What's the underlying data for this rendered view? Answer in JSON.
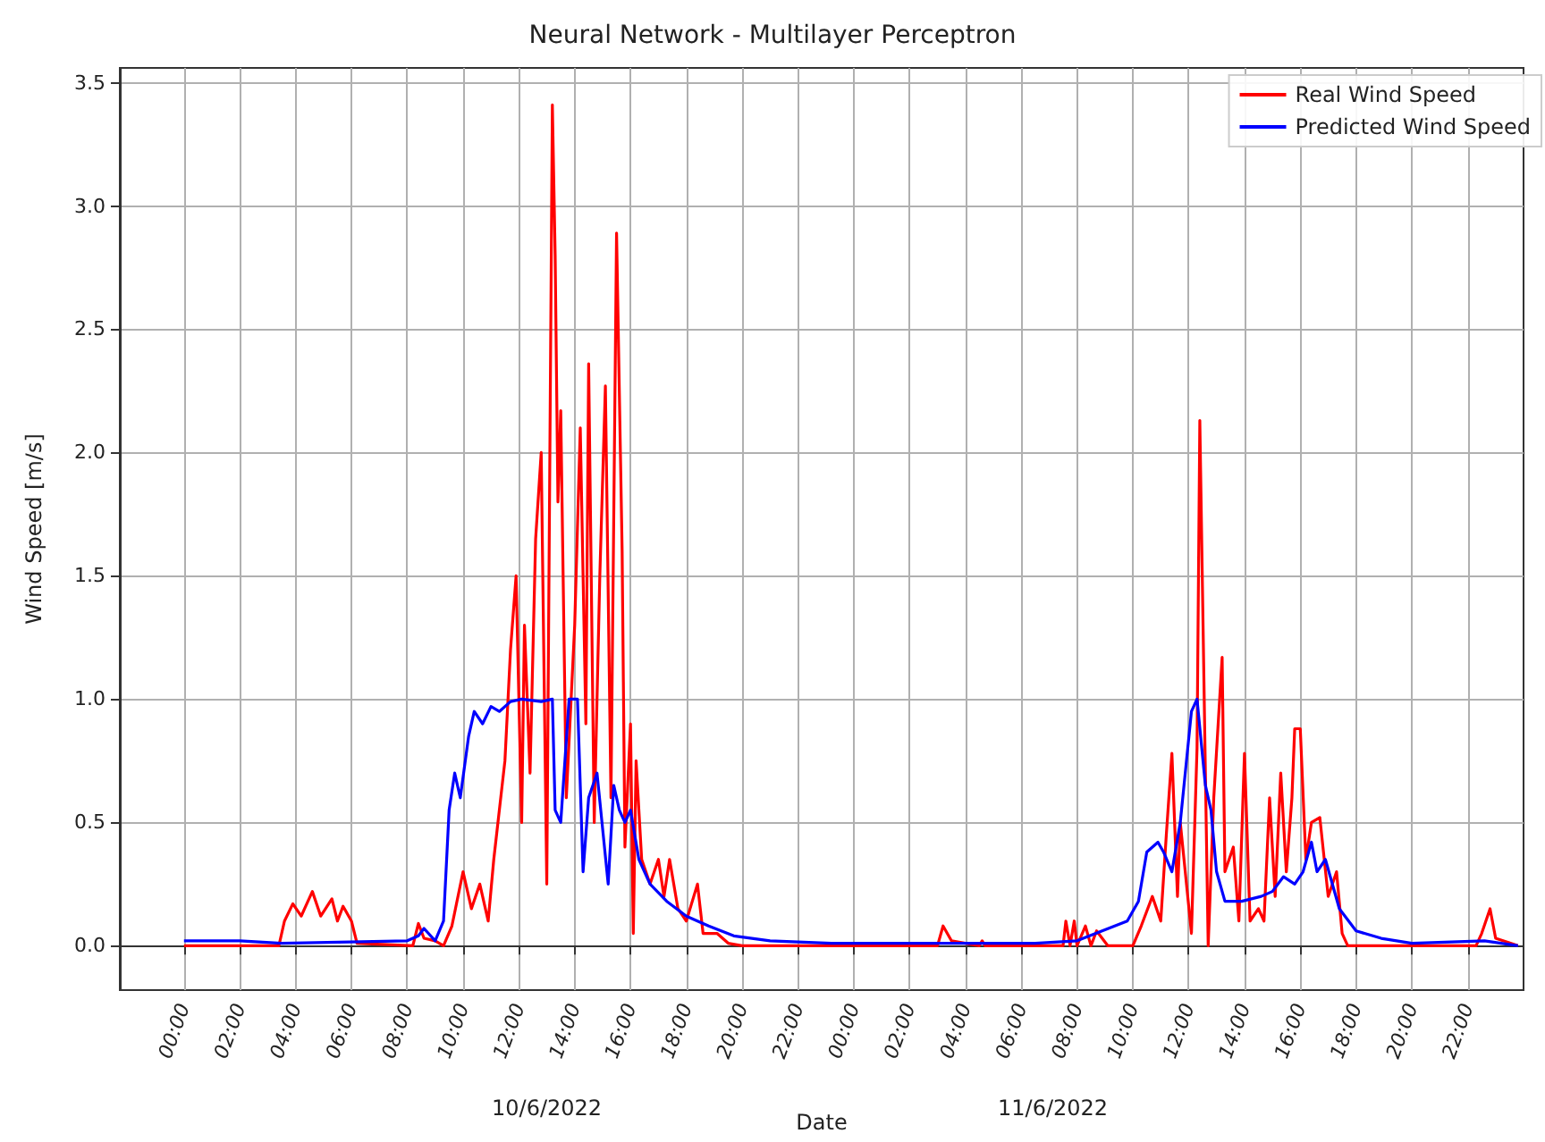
{
  "chart_data": {
    "type": "line",
    "title": "Neural Network - Multilayer Perceptron",
    "xlabel": "Date",
    "ylabel": "Wind Speed [m/s]",
    "xlim": [
      "2022-06-09T21:42",
      "2022-06-12T00:00"
    ],
    "ylim": [
      -0.18,
      3.56
    ],
    "xticks": [
      {
        "value": "2022-06-10T00:00",
        "label": "00:00"
      },
      {
        "value": "2022-06-10T02:00",
        "label": "02:00"
      },
      {
        "value": "2022-06-10T04:00",
        "label": "04:00"
      },
      {
        "value": "2022-06-10T06:00",
        "label": "06:00"
      },
      {
        "value": "2022-06-10T08:00",
        "label": "08:00"
      },
      {
        "value": "2022-06-10T10:00",
        "label": "10:00"
      },
      {
        "value": "2022-06-10T12:00",
        "label": "12:00"
      },
      {
        "value": "2022-06-10T14:00",
        "label": "14:00"
      },
      {
        "value": "2022-06-10T16:00",
        "label": "16:00"
      },
      {
        "value": "2022-06-10T18:00",
        "label": "18:00"
      },
      {
        "value": "2022-06-10T20:00",
        "label": "20:00"
      },
      {
        "value": "2022-06-10T22:00",
        "label": "22:00"
      },
      {
        "value": "2022-06-11T00:00",
        "label": "00:00"
      },
      {
        "value": "2022-06-11T02:00",
        "label": "02:00"
      },
      {
        "value": "2022-06-11T04:00",
        "label": "04:00"
      },
      {
        "value": "2022-06-11T06:00",
        "label": "06:00"
      },
      {
        "value": "2022-06-11T08:00",
        "label": "08:00"
      },
      {
        "value": "2022-06-11T10:00",
        "label": "10:00"
      },
      {
        "value": "2022-06-11T12:00",
        "label": "12:00"
      },
      {
        "value": "2022-06-11T14:00",
        "label": "14:00"
      },
      {
        "value": "2022-06-11T16:00",
        "label": "16:00"
      },
      {
        "value": "2022-06-11T18:00",
        "label": "18:00"
      },
      {
        "value": "2022-06-11T20:00",
        "label": "20:00"
      },
      {
        "value": "2022-06-11T22:00",
        "label": "22:00"
      }
    ],
    "yticks": [
      {
        "value": 0,
        "label": "0.0"
      },
      {
        "value": 0.5,
        "label": "0.5"
      },
      {
        "value": 1,
        "label": "1.0"
      },
      {
        "value": 1.5,
        "label": "1.5"
      },
      {
        "value": 2,
        "label": "2.0"
      },
      {
        "value": 2.5,
        "label": "2.5"
      },
      {
        "value": 3,
        "label": "3.0"
      },
      {
        "value": 3.5,
        "label": "3.5"
      }
    ],
    "grid": true,
    "legend": "top right",
    "marker": "none",
    "line_style": "solid",
    "annotations": [
      "10/6/2022",
      "11/6/2022"
    ],
    "series": [
      {
        "name": "Real Wind Speed",
        "color": "#ff0000",
        "x": [
          "2022-06-10T00:00",
          "2022-06-10T03:24",
          "2022-06-10T03:36",
          "2022-06-10T03:54",
          "2022-06-10T04:12",
          "2022-06-10T04:36",
          "2022-06-10T04:54",
          "2022-06-10T05:18",
          "2022-06-10T05:30",
          "2022-06-10T05:42",
          "2022-06-10T06:00",
          "2022-06-10T06:12",
          "2022-06-10T08:12",
          "2022-06-10T08:24",
          "2022-06-10T08:36",
          "2022-06-10T09:00",
          "2022-06-10T09:18",
          "2022-06-10T09:36",
          "2022-06-10T10:00",
          "2022-06-10T10:18",
          "2022-06-10T10:36",
          "2022-06-10T10:54",
          "2022-06-10T11:06",
          "2022-06-10T11:30",
          "2022-06-10T11:42",
          "2022-06-10T11:54",
          "2022-06-10T12:06",
          "2022-06-10T12:12",
          "2022-06-10T12:24",
          "2022-06-10T12:36",
          "2022-06-10T12:48",
          "2022-06-10T13:00",
          "2022-06-10T13:12",
          "2022-06-10T13:18",
          "2022-06-10T13:24",
          "2022-06-10T13:30",
          "2022-06-10T13:42",
          "2022-06-10T14:00",
          "2022-06-10T14:12",
          "2022-06-10T14:24",
          "2022-06-10T14:30",
          "2022-06-10T14:42",
          "2022-06-10T14:54",
          "2022-06-10T15:06",
          "2022-06-10T15:18",
          "2022-06-10T15:30",
          "2022-06-10T15:42",
          "2022-06-10T15:48",
          "2022-06-10T16:00",
          "2022-06-10T16:06",
          "2022-06-10T16:12",
          "2022-06-10T16:24",
          "2022-06-10T16:42",
          "2022-06-10T17:00",
          "2022-06-10T17:12",
          "2022-06-10T17:24",
          "2022-06-10T17:42",
          "2022-06-10T18:00",
          "2022-06-10T18:24",
          "2022-06-10T18:36",
          "2022-06-10T19:06",
          "2022-06-10T19:30",
          "2022-06-10T20:00",
          "2022-06-11T03:00",
          "2022-06-11T03:12",
          "2022-06-11T03:30",
          "2022-06-11T04:30",
          "2022-06-11T04:36",
          "2022-06-11T04:42",
          "2022-06-11T07:30",
          "2022-06-11T07:36",
          "2022-06-11T07:45",
          "2022-06-11T07:54",
          "2022-06-11T08:00",
          "2022-06-11T08:18",
          "2022-06-11T08:30",
          "2022-06-11T08:42",
          "2022-06-11T09:06",
          "2022-06-11T10:00",
          "2022-06-11T10:18",
          "2022-06-11T10:42",
          "2022-06-11T11:00",
          "2022-06-11T11:12",
          "2022-06-11T11:24",
          "2022-06-11T11:36",
          "2022-06-11T11:42",
          "2022-06-11T12:06",
          "2022-06-11T12:18",
          "2022-06-11T12:24",
          "2022-06-11T12:36",
          "2022-06-11T12:42",
          "2022-06-11T12:54",
          "2022-06-11T13:12",
          "2022-06-11T13:18",
          "2022-06-11T13:36",
          "2022-06-11T13:48",
          "2022-06-11T14:00",
          "2022-06-11T14:12",
          "2022-06-11T14:30",
          "2022-06-11T14:42",
          "2022-06-11T14:54",
          "2022-06-11T15:06",
          "2022-06-11T15:18",
          "2022-06-11T15:30",
          "2022-06-11T15:42",
          "2022-06-11T15:48",
          "2022-06-11T16:00",
          "2022-06-11T16:12",
          "2022-06-11T16:24",
          "2022-06-11T16:42",
          "2022-06-11T17:00",
          "2022-06-11T17:18",
          "2022-06-11T17:30",
          "2022-06-11T17:42",
          "2022-06-11T22:18",
          "2022-06-11T22:30",
          "2022-06-11T22:48",
          "2022-06-11T23:00",
          "2022-06-11T23:48"
        ],
        "values": [
          0,
          0,
          0.1,
          0.17,
          0.12,
          0.22,
          0.12,
          0.19,
          0.1,
          0.16,
          0.1,
          0.01,
          0,
          0.09,
          0.03,
          0.02,
          0,
          0.08,
          0.3,
          0.15,
          0.25,
          0.1,
          0.35,
          0.75,
          1.2,
          1.5,
          0.5,
          1.3,
          0.7,
          1.65,
          2.0,
          0.25,
          3.41,
          2.8,
          1.8,
          2.17,
          0.6,
          1.3,
          2.1,
          0.9,
          2.36,
          0.5,
          1.5,
          2.27,
          0.6,
          2.89,
          1.6,
          0.4,
          0.9,
          0.05,
          0.75,
          0.35,
          0.25,
          0.35,
          0.2,
          0.35,
          0.15,
          0.1,
          0.25,
          0.05,
          0.05,
          0.01,
          0,
          0,
          0.08,
          0.02,
          0,
          0.02,
          0,
          0,
          0.1,
          0,
          0.1,
          0,
          0.08,
          0,
          0.06,
          0,
          0,
          0.08,
          0.2,
          0.1,
          0.45,
          0.78,
          0.2,
          0.5,
          0.05,
          0.8,
          2.13,
          0.7,
          0,
          0.6,
          1.17,
          0.3,
          0.4,
          0.1,
          0.78,
          0.1,
          0.15,
          0.1,
          0.6,
          0.2,
          0.7,
          0.3,
          0.6,
          0.88,
          0.88,
          0.35,
          0.5,
          0.52,
          0.2,
          0.3,
          0.05,
          0,
          0,
          0.05,
          0.15,
          0.03,
          0
        ]
      },
      {
        "name": "Predicted Wind Speed",
        "color": "#0000ff",
        "x": [
          "2022-06-10T00:00",
          "2022-06-10T02:00",
          "2022-06-10T03:30",
          "2022-06-10T08:00",
          "2022-06-10T08:24",
          "2022-06-10T08:36",
          "2022-06-10T09:00",
          "2022-06-10T09:18",
          "2022-06-10T09:30",
          "2022-06-10T09:42",
          "2022-06-10T09:54",
          "2022-06-10T10:12",
          "2022-06-10T10:24",
          "2022-06-10T10:42",
          "2022-06-10T11:00",
          "2022-06-10T11:18",
          "2022-06-10T11:42",
          "2022-06-10T12:06",
          "2022-06-10T12:48",
          "2022-06-10T13:12",
          "2022-06-10T13:18",
          "2022-06-10T13:30",
          "2022-06-10T13:48",
          "2022-06-10T14:06",
          "2022-06-10T14:18",
          "2022-06-10T14:30",
          "2022-06-10T14:48",
          "2022-06-10T15:12",
          "2022-06-10T15:24",
          "2022-06-10T15:36",
          "2022-06-10T15:48",
          "2022-06-10T16:00",
          "2022-06-10T16:18",
          "2022-06-10T16:42",
          "2022-06-10T17:18",
          "2022-06-10T18:00",
          "2022-06-10T18:48",
          "2022-06-10T19:42",
          "2022-06-10T21:00",
          "2022-06-10T23:12",
          "2022-06-11T06:30",
          "2022-06-11T08:00",
          "2022-06-11T08:54",
          "2022-06-11T09:48",
          "2022-06-11T10:12",
          "2022-06-11T10:30",
          "2022-06-11T10:54",
          "2022-06-11T11:06",
          "2022-06-11T11:24",
          "2022-06-11T11:42",
          "2022-06-11T12:06",
          "2022-06-11T12:18",
          "2022-06-11T12:36",
          "2022-06-11T12:48",
          "2022-06-11T13:00",
          "2022-06-11T13:18",
          "2022-06-11T13:54",
          "2022-06-11T14:36",
          "2022-06-11T15:00",
          "2022-06-11T15:24",
          "2022-06-11T15:48",
          "2022-06-11T16:06",
          "2022-06-11T16:24",
          "2022-06-11T16:36",
          "2022-06-11T16:54",
          "2022-06-11T17:24",
          "2022-06-11T18:00",
          "2022-06-11T18:54",
          "2022-06-11T20:00",
          "2022-06-11T22:36",
          "2022-06-11T23:48"
        ],
        "values": [
          0.02,
          0.02,
          0.01,
          0.02,
          0.04,
          0.07,
          0.02,
          0.1,
          0.55,
          0.7,
          0.6,
          0.85,
          0.95,
          0.9,
          0.97,
          0.95,
          0.99,
          1.0,
          0.99,
          1.0,
          0.55,
          0.5,
          1.0,
          1.0,
          0.3,
          0.6,
          0.7,
          0.25,
          0.65,
          0.55,
          0.5,
          0.55,
          0.35,
          0.25,
          0.18,
          0.12,
          0.08,
          0.04,
          0.02,
          0.01,
          0.01,
          0.02,
          0.06,
          0.1,
          0.18,
          0.38,
          0.42,
          0.38,
          0.3,
          0.5,
          0.95,
          1.0,
          0.65,
          0.55,
          0.3,
          0.18,
          0.18,
          0.2,
          0.22,
          0.28,
          0.25,
          0.3,
          0.42,
          0.3,
          0.35,
          0.15,
          0.06,
          0.03,
          0.01,
          0.02,
          0
        ]
      }
    ]
  }
}
